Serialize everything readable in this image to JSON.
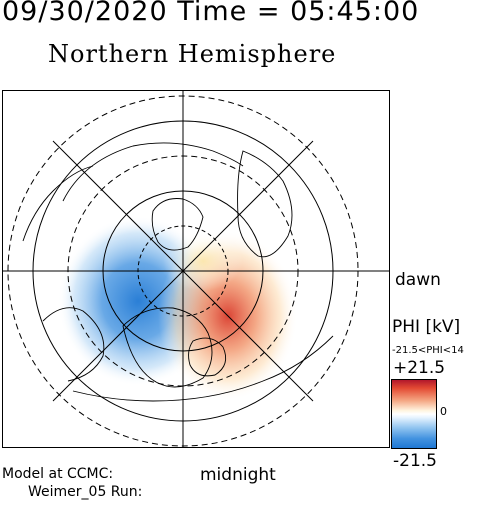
{
  "header": {
    "timestamp": "09/30/2020 Time = 05:45:00"
  },
  "map": {
    "title": "Northern Hemisphere",
    "projection": "polar stereographic, north pole centered",
    "orientation_labels": {
      "right": "dawn",
      "bottom": "midnight"
    },
    "overlay_colors": {
      "positive": "#e34a33",
      "negative": "#1f78d4",
      "neutral": "#ffffff"
    }
  },
  "colorbar": {
    "quantity_label": "PHI [kV]",
    "range_note": "-21.5<PHI<14",
    "max_label": "+21.5",
    "zero_label": "0",
    "min_label": "-21.5",
    "max_value": 21.5,
    "min_value": -21.5
  },
  "footer": {
    "model_line": "Model at CCMC:",
    "run_line": "Weimer_05 Run:"
  }
}
